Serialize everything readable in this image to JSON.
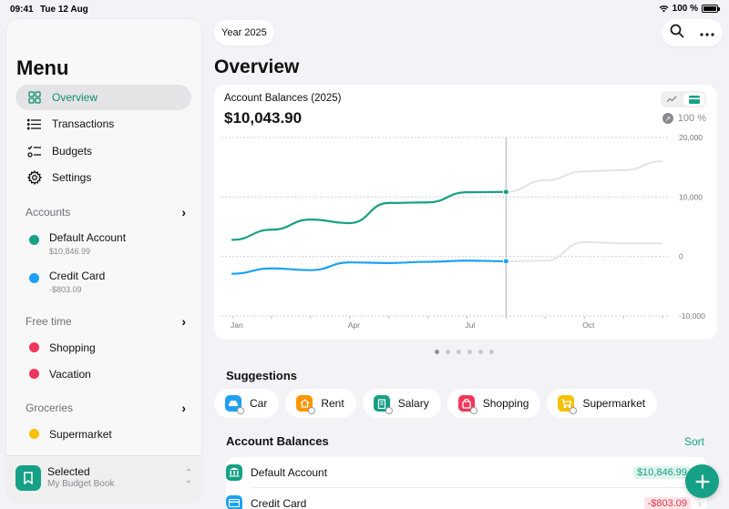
{
  "status_bar": {
    "time": "09:41",
    "date": "Tue 12 Aug",
    "battery": "100 %"
  },
  "sidebar": {
    "title": "Menu",
    "nav": [
      {
        "label": "Overview",
        "icon": "grid-icon",
        "active": true
      },
      {
        "label": "Transactions",
        "icon": "list-icon",
        "active": false
      },
      {
        "label": "Budgets",
        "icon": "checklist-icon",
        "active": false
      },
      {
        "label": "Settings",
        "icon": "gear-icon",
        "active": false
      }
    ],
    "sections": [
      {
        "title": "Accounts",
        "items": [
          {
            "name": "Default Account",
            "sub": "$10,846.99",
            "color": "#16a085"
          },
          {
            "name": "Credit Card",
            "sub": "-$803.09",
            "color": "#1ea1f2"
          }
        ]
      },
      {
        "title": "Free time",
        "items": [
          {
            "name": "Shopping",
            "color": "#f0365a"
          },
          {
            "name": "Vacation",
            "color": "#f0365a"
          }
        ]
      },
      {
        "title": "Groceries",
        "items": [
          {
            "name": "Supermarket",
            "color": "#f5c000"
          }
        ]
      }
    ],
    "selected": {
      "title": "Selected",
      "subtitle": "My Budget Book"
    }
  },
  "header": {
    "year_button": "Year 2025",
    "page_title": "Overview"
  },
  "card": {
    "title": "Account Balances (2025)",
    "total": "$10,043.90",
    "percent": "100 %"
  },
  "chart_data": {
    "type": "line",
    "y_ticks": [
      "20,000",
      "10,000",
      "0",
      "-10,000"
    ],
    "x_ticks": [
      "Jan",
      "Apr",
      "Jul",
      "Oct"
    ],
    "ylim": [
      -10000,
      20000
    ],
    "series": [
      {
        "color": "#16a085",
        "values": [
          {
            "m": 0,
            "y": 2800
          },
          {
            "m": 1,
            "y": 4500
          },
          {
            "m": 2,
            "y": 6200
          },
          {
            "m": 3,
            "y": 5600
          },
          {
            "m": 4,
            "y": 9000
          },
          {
            "m": 5,
            "y": 9100
          },
          {
            "m": 6,
            "y": 10800
          },
          {
            "m": 7,
            "y": 10850
          }
        ]
      },
      {
        "color": "#1ea1f2",
        "values": [
          {
            "m": 0,
            "y": -2900
          },
          {
            "m": 1,
            "y": -2000
          },
          {
            "m": 2,
            "y": -2300
          },
          {
            "m": 3,
            "y": -1000
          },
          {
            "m": 4,
            "y": -1100
          },
          {
            "m": 5,
            "y": -900
          },
          {
            "m": 6,
            "y": -700
          },
          {
            "m": 7,
            "y": -800
          }
        ]
      }
    ],
    "projected": [
      {
        "values": [
          {
            "m": 7,
            "y": 10850
          },
          {
            "m": 8,
            "y": 12800
          },
          {
            "m": 9,
            "y": 14300
          },
          {
            "m": 10,
            "y": 14500
          },
          {
            "m": 11,
            "y": 16000
          }
        ]
      },
      {
        "values": [
          {
            "m": 7,
            "y": -800
          },
          {
            "m": 8,
            "y": -700
          },
          {
            "m": 9,
            "y": 2400
          },
          {
            "m": 10,
            "y": 2200
          },
          {
            "m": 11,
            "y": 2200
          }
        ]
      }
    ],
    "cursor_month": 7,
    "grid": true
  },
  "suggestions": {
    "title": "Suggestions",
    "chips": [
      {
        "label": "Car",
        "icon": "car-icon",
        "color": "#1ea1f2"
      },
      {
        "label": "Rent",
        "icon": "house-icon",
        "color": "#ff9500"
      },
      {
        "label": "Salary",
        "icon": "building-icon",
        "color": "#16a085"
      },
      {
        "label": "Shopping",
        "icon": "bag-icon",
        "color": "#f0365a"
      },
      {
        "label": "Supermarket",
        "icon": "cart-icon",
        "color": "#f5c000"
      }
    ]
  },
  "balances": {
    "title": "Account Balances",
    "sort_label": "Sort",
    "rows": [
      {
        "name": "Default Account",
        "amount": "$10,846.99",
        "icon": "bank-icon",
        "color": "#16a085",
        "positive": true
      },
      {
        "name": "Credit Card",
        "amount": "-$803.09",
        "icon": "card-icon",
        "color": "#1ea1f2",
        "positive": false
      }
    ]
  }
}
